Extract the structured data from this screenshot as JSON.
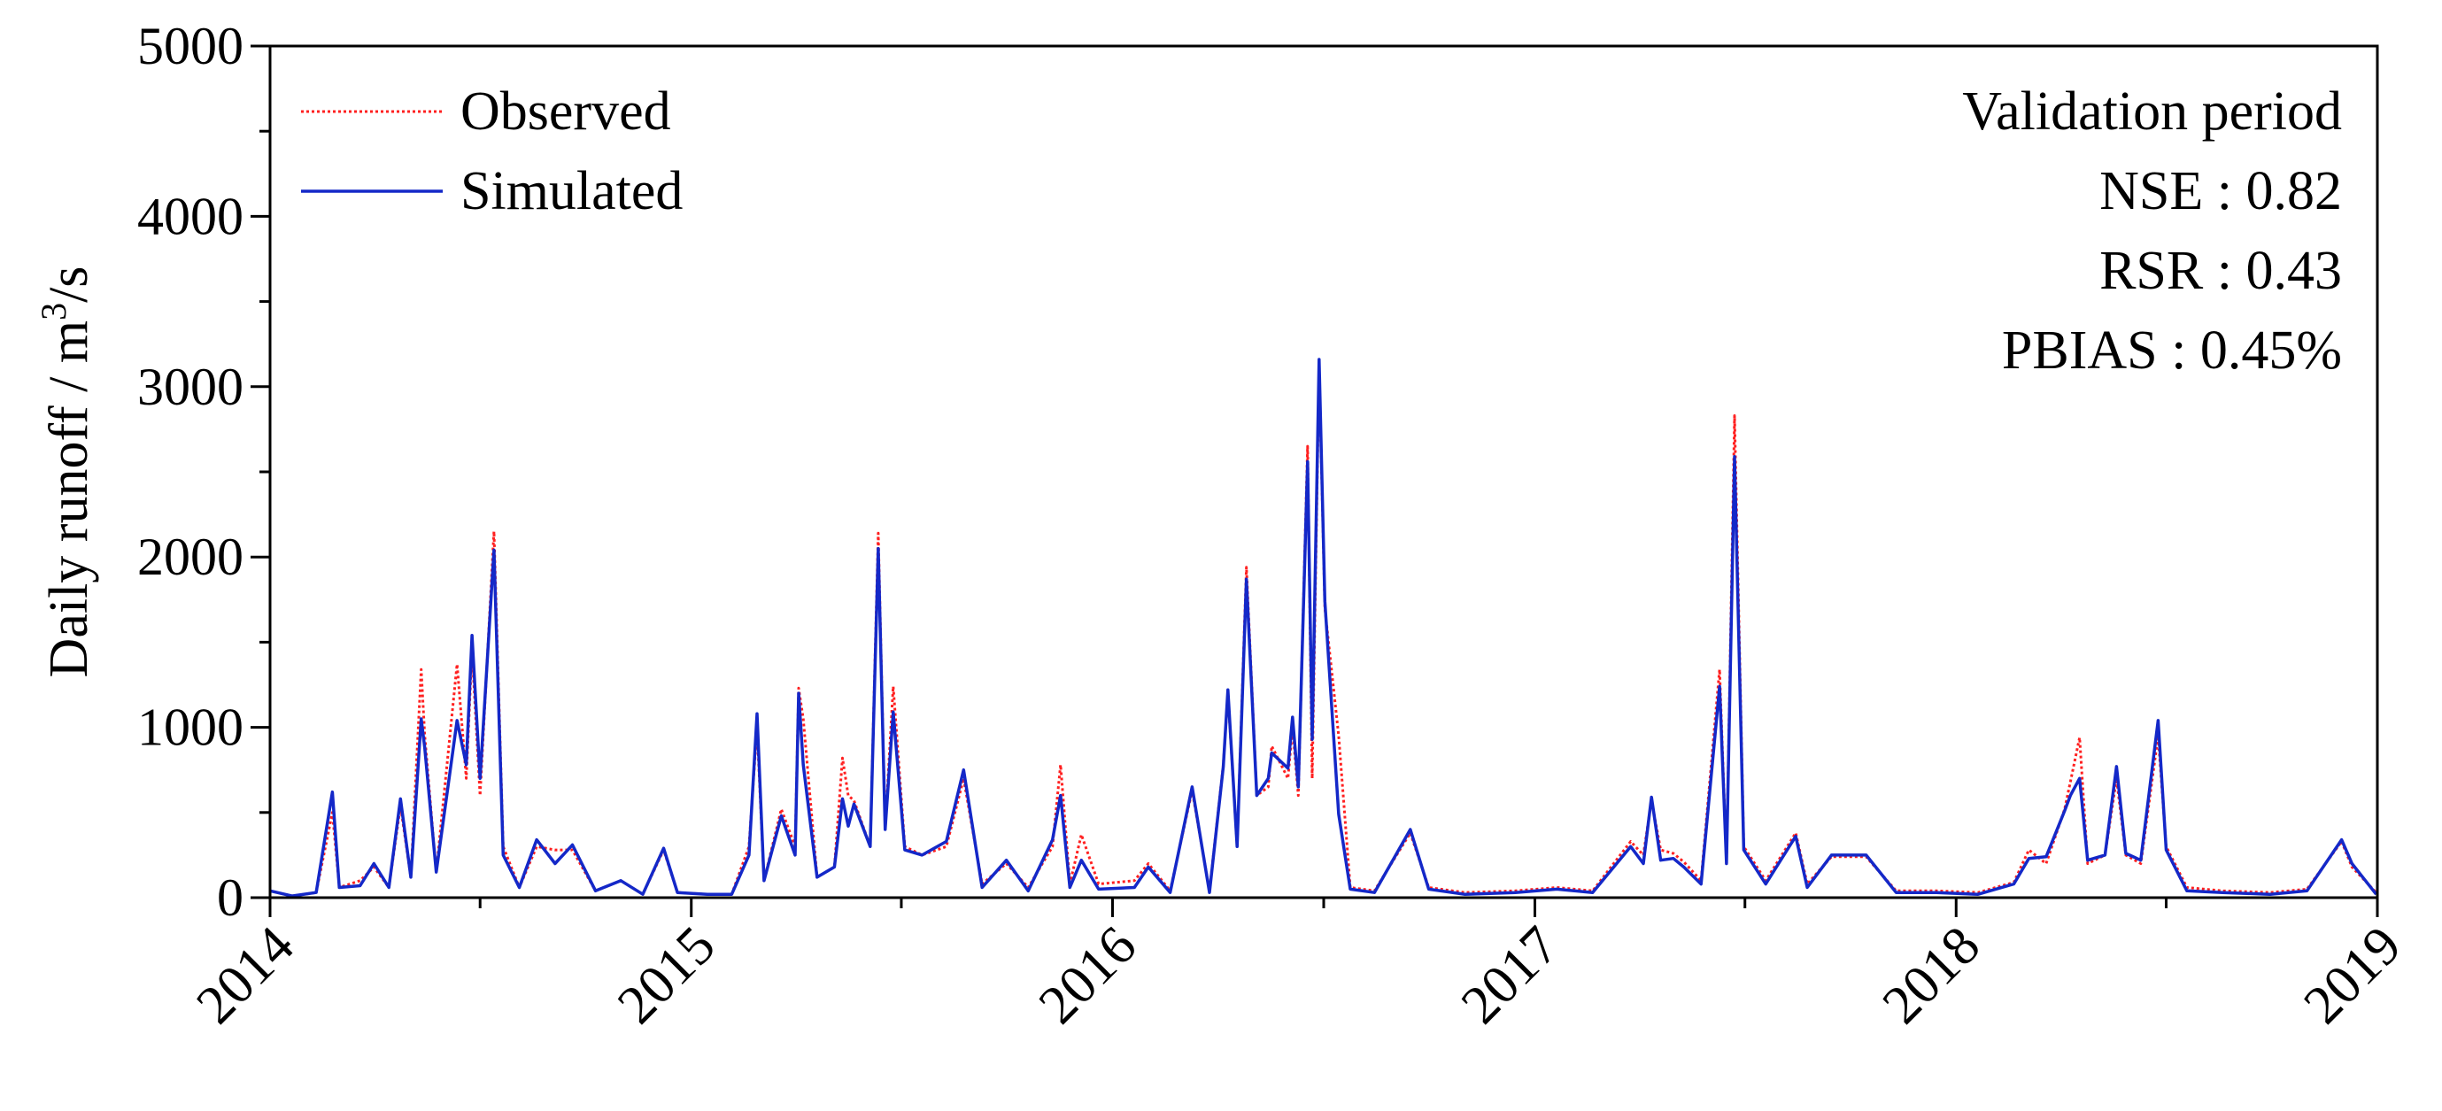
{
  "chart_data": {
    "type": "line",
    "title": "",
    "ylabel": "Daily runoff / m³/s",
    "ylabel_parts": {
      "prefix": "Daily runoff / m",
      "superscript": "3",
      "suffix": "/s"
    },
    "xlabel": "",
    "x_ticks": [
      "2014",
      "2015",
      "2016",
      "2017",
      "2018",
      "2019"
    ],
    "y_ticks": [
      "0",
      "1000",
      "2000",
      "3000",
      "4000",
      "5000"
    ],
    "xlim": [
      "2014-01-01",
      "2019-01-01"
    ],
    "ylim": [
      0,
      5000
    ],
    "grid": false,
    "legend_position": "top-left",
    "annotations": [
      "Validation period",
      "NSE : 0.82",
      "RSR : 0.43",
      "PBIAS : 0.45%"
    ],
    "series": [
      {
        "name": "Observed",
        "color": "#ff2020",
        "style": "dotted",
        "points": [
          [
            "2014-01-01",
            40
          ],
          [
            "2014-01-20",
            10
          ],
          [
            "2014-02-10",
            30
          ],
          [
            "2014-02-24",
            500
          ],
          [
            "2014-03-02",
            60
          ],
          [
            "2014-03-20",
            100
          ],
          [
            "2014-04-01",
            180
          ],
          [
            "2014-04-14",
            60
          ],
          [
            "2014-04-24",
            540
          ],
          [
            "2014-05-03",
            120
          ],
          [
            "2014-05-12",
            1340
          ],
          [
            "2014-05-15",
            950
          ],
          [
            "2014-05-25",
            150
          ],
          [
            "2014-06-12",
            1370
          ],
          [
            "2014-06-20",
            700
          ],
          [
            "2014-06-25",
            1450
          ],
          [
            "2014-07-02",
            600
          ],
          [
            "2014-07-14",
            2150
          ],
          [
            "2014-07-22",
            300
          ],
          [
            "2014-08-05",
            60
          ],
          [
            "2014-08-20",
            300
          ],
          [
            "2014-09-05",
            280
          ],
          [
            "2014-09-20",
            280
          ],
          [
            "2014-10-10",
            40
          ],
          [
            "2014-11-01",
            100
          ],
          [
            "2014-11-20",
            20
          ],
          [
            "2014-12-08",
            280
          ],
          [
            "2014-12-20",
            30
          ],
          [
            "2015-01-15",
            20
          ],
          [
            "2015-02-05",
            20
          ],
          [
            "2015-02-20",
            300
          ],
          [
            "2015-02-27",
            1000
          ],
          [
            "2015-03-05",
            100
          ],
          [
            "2015-03-20",
            520
          ],
          [
            "2015-04-01",
            300
          ],
          [
            "2015-04-04",
            1230
          ],
          [
            "2015-04-08",
            1050
          ],
          [
            "2015-04-20",
            120
          ],
          [
            "2015-05-05",
            180
          ],
          [
            "2015-05-12",
            820
          ],
          [
            "2015-05-17",
            600
          ],
          [
            "2015-05-22",
            570
          ],
          [
            "2015-06-05",
            300
          ],
          [
            "2015-06-12",
            2140
          ],
          [
            "2015-06-18",
            400
          ],
          [
            "2015-06-25",
            1240
          ],
          [
            "2015-07-05",
            300
          ],
          [
            "2015-07-20",
            250
          ],
          [
            "2015-08-10",
            300
          ],
          [
            "2015-08-25",
            700
          ],
          [
            "2015-09-10",
            80
          ],
          [
            "2015-10-01",
            200
          ],
          [
            "2015-10-20",
            60
          ],
          [
            "2015-11-10",
            300
          ],
          [
            "2015-11-17",
            780
          ],
          [
            "2015-11-25",
            80
          ],
          [
            "2015-12-05",
            370
          ],
          [
            "2015-12-20",
            80
          ],
          [
            "2016-01-20",
            100
          ],
          [
            "2016-02-01",
            200
          ],
          [
            "2016-02-20",
            40
          ],
          [
            "2016-03-10",
            630
          ],
          [
            "2016-03-25",
            40
          ],
          [
            "2016-04-06",
            780
          ],
          [
            "2016-04-10",
            1200
          ],
          [
            "2016-04-18",
            300
          ],
          [
            "2016-04-26",
            1940
          ],
          [
            "2016-05-05",
            600
          ],
          [
            "2016-05-15",
            650
          ],
          [
            "2016-05-18",
            890
          ],
          [
            "2016-06-01",
            700
          ],
          [
            "2016-06-05",
            1000
          ],
          [
            "2016-06-10",
            600
          ],
          [
            "2016-06-18",
            2650
          ],
          [
            "2016-06-22",
            700
          ],
          [
            "2016-06-28",
            3120
          ],
          [
            "2016-07-03",
            1700
          ],
          [
            "2016-07-15",
            950
          ],
          [
            "2016-07-25",
            60
          ],
          [
            "2016-08-15",
            40
          ],
          [
            "2016-09-15",
            380
          ],
          [
            "2016-10-01",
            60
          ],
          [
            "2016-11-01",
            30
          ],
          [
            "2016-12-15",
            40
          ],
          [
            "2017-01-20",
            60
          ],
          [
            "2017-02-20",
            40
          ],
          [
            "2017-03-25",
            330
          ],
          [
            "2017-04-05",
            250
          ],
          [
            "2017-04-12",
            570
          ],
          [
            "2017-04-20",
            280
          ],
          [
            "2017-05-01",
            260
          ],
          [
            "2017-05-10",
            210
          ],
          [
            "2017-05-25",
            100
          ],
          [
            "2017-06-10",
            1340
          ],
          [
            "2017-06-16",
            200
          ],
          [
            "2017-06-23",
            2830
          ],
          [
            "2017-07-01",
            300
          ],
          [
            "2017-07-20",
            100
          ],
          [
            "2017-08-15",
            380
          ],
          [
            "2017-08-25",
            80
          ],
          [
            "2017-09-15",
            240
          ],
          [
            "2017-10-15",
            240
          ],
          [
            "2017-11-10",
            40
          ],
          [
            "2017-12-15",
            40
          ],
          [
            "2018-01-20",
            30
          ],
          [
            "2018-02-20",
            90
          ],
          [
            "2018-03-05",
            280
          ],
          [
            "2018-03-20",
            200
          ],
          [
            "2018-04-05",
            520
          ],
          [
            "2018-04-10",
            680
          ],
          [
            "2018-04-18",
            940
          ],
          [
            "2018-04-25",
            200
          ],
          [
            "2018-05-10",
            250
          ],
          [
            "2018-05-20",
            700
          ],
          [
            "2018-05-28",
            250
          ],
          [
            "2018-06-10",
            200
          ],
          [
            "2018-06-25",
            950
          ],
          [
            "2018-07-02",
            300
          ],
          [
            "2018-07-20",
            60
          ],
          [
            "2018-08-20",
            40
          ],
          [
            "2018-09-30",
            30
          ],
          [
            "2018-11-01",
            50
          ],
          [
            "2018-12-01",
            330
          ],
          [
            "2018-12-10",
            180
          ],
          [
            "2018-12-31",
            30
          ]
        ]
      },
      {
        "name": "Simulated",
        "color": "#1428c8",
        "style": "solid",
        "points": [
          [
            "2014-01-01",
            40
          ],
          [
            "2014-01-20",
            10
          ],
          [
            "2014-02-10",
            30
          ],
          [
            "2014-02-24",
            620
          ],
          [
            "2014-03-02",
            60
          ],
          [
            "2014-03-20",
            70
          ],
          [
            "2014-04-01",
            200
          ],
          [
            "2014-04-14",
            60
          ],
          [
            "2014-04-24",
            580
          ],
          [
            "2014-05-03",
            120
          ],
          [
            "2014-05-12",
            1050
          ],
          [
            "2014-05-15",
            880
          ],
          [
            "2014-05-25",
            150
          ],
          [
            "2014-06-12",
            1040
          ],
          [
            "2014-06-20",
            780
          ],
          [
            "2014-06-25",
            1540
          ],
          [
            "2014-07-02",
            700
          ],
          [
            "2014-07-14",
            2040
          ],
          [
            "2014-07-22",
            250
          ],
          [
            "2014-08-05",
            60
          ],
          [
            "2014-08-20",
            340
          ],
          [
            "2014-09-05",
            200
          ],
          [
            "2014-09-20",
            310
          ],
          [
            "2014-10-10",
            40
          ],
          [
            "2014-11-01",
            100
          ],
          [
            "2014-11-20",
            20
          ],
          [
            "2014-12-08",
            290
          ],
          [
            "2014-12-20",
            30
          ],
          [
            "2015-01-15",
            20
          ],
          [
            "2015-02-05",
            20
          ],
          [
            "2015-02-20",
            250
          ],
          [
            "2015-02-27",
            1080
          ],
          [
            "2015-03-05",
            100
          ],
          [
            "2015-03-20",
            480
          ],
          [
            "2015-04-01",
            250
          ],
          [
            "2015-04-04",
            1200
          ],
          [
            "2015-04-08",
            780
          ],
          [
            "2015-04-20",
            120
          ],
          [
            "2015-05-05",
            180
          ],
          [
            "2015-05-12",
            580
          ],
          [
            "2015-05-17",
            420
          ],
          [
            "2015-05-22",
            550
          ],
          [
            "2015-06-05",
            300
          ],
          [
            "2015-06-12",
            2050
          ],
          [
            "2015-06-18",
            400
          ],
          [
            "2015-06-25",
            1090
          ],
          [
            "2015-07-05",
            280
          ],
          [
            "2015-07-20",
            250
          ],
          [
            "2015-08-10",
            330
          ],
          [
            "2015-08-25",
            750
          ],
          [
            "2015-09-10",
            60
          ],
          [
            "2015-10-01",
            220
          ],
          [
            "2015-10-20",
            40
          ],
          [
            "2015-11-10",
            340
          ],
          [
            "2015-11-17",
            600
          ],
          [
            "2015-11-25",
            60
          ],
          [
            "2015-12-05",
            220
          ],
          [
            "2015-12-20",
            50
          ],
          [
            "2016-01-20",
            60
          ],
          [
            "2016-02-01",
            180
          ],
          [
            "2016-02-20",
            30
          ],
          [
            "2016-03-10",
            650
          ],
          [
            "2016-03-25",
            30
          ],
          [
            "2016-04-06",
            770
          ],
          [
            "2016-04-10",
            1220
          ],
          [
            "2016-04-18",
            300
          ],
          [
            "2016-04-26",
            1870
          ],
          [
            "2016-05-05",
            600
          ],
          [
            "2016-05-15",
            700
          ],
          [
            "2016-05-18",
            850
          ],
          [
            "2016-06-01",
            760
          ],
          [
            "2016-06-05",
            1060
          ],
          [
            "2016-06-10",
            650
          ],
          [
            "2016-06-18",
            2560
          ],
          [
            "2016-06-22",
            930
          ],
          [
            "2016-06-28",
            3160
          ],
          [
            "2016-07-03",
            1740
          ],
          [
            "2016-07-15",
            490
          ],
          [
            "2016-07-25",
            50
          ],
          [
            "2016-08-15",
            30
          ],
          [
            "2016-09-15",
            400
          ],
          [
            "2016-10-01",
            50
          ],
          [
            "2016-11-01",
            20
          ],
          [
            "2016-12-15",
            30
          ],
          [
            "2017-01-20",
            50
          ],
          [
            "2017-02-20",
            30
          ],
          [
            "2017-03-25",
            300
          ],
          [
            "2017-04-05",
            200
          ],
          [
            "2017-04-12",
            590
          ],
          [
            "2017-04-20",
            220
          ],
          [
            "2017-05-01",
            230
          ],
          [
            "2017-05-10",
            180
          ],
          [
            "2017-05-25",
            80
          ],
          [
            "2017-06-10",
            1240
          ],
          [
            "2017-06-16",
            200
          ],
          [
            "2017-06-23",
            2590
          ],
          [
            "2017-07-01",
            280
          ],
          [
            "2017-07-20",
            80
          ],
          [
            "2017-08-15",
            360
          ],
          [
            "2017-08-25",
            60
          ],
          [
            "2017-09-15",
            250
          ],
          [
            "2017-10-15",
            250
          ],
          [
            "2017-11-10",
            30
          ],
          [
            "2017-12-15",
            30
          ],
          [
            "2018-01-20",
            20
          ],
          [
            "2018-02-20",
            80
          ],
          [
            "2018-03-05",
            230
          ],
          [
            "2018-03-20",
            240
          ],
          [
            "2018-04-05",
            510
          ],
          [
            "2018-04-10",
            600
          ],
          [
            "2018-04-18",
            700
          ],
          [
            "2018-04-25",
            220
          ],
          [
            "2018-05-10",
            250
          ],
          [
            "2018-05-20",
            770
          ],
          [
            "2018-05-28",
            260
          ],
          [
            "2018-06-10",
            220
          ],
          [
            "2018-06-25",
            1040
          ],
          [
            "2018-07-02",
            280
          ],
          [
            "2018-07-20",
            40
          ],
          [
            "2018-08-20",
            30
          ],
          [
            "2018-09-30",
            20
          ],
          [
            "2018-11-01",
            40
          ],
          [
            "2018-12-01",
            340
          ],
          [
            "2018-12-10",
            200
          ],
          [
            "2018-12-31",
            20
          ]
        ]
      }
    ]
  }
}
